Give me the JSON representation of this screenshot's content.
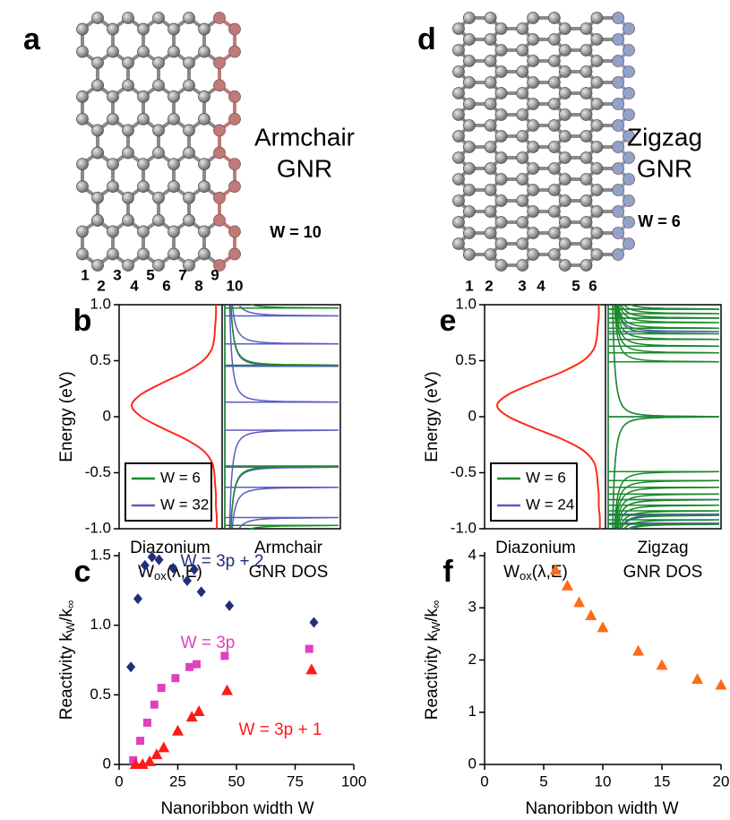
{
  "diagrams": [
    {
      "label": "a",
      "name": [
        "Armchair",
        "GNR"
      ],
      "width_label": "W = 10",
      "site_numbers": [
        "1",
        "2",
        "3",
        "4",
        "5",
        "6",
        "7",
        "8",
        "9",
        "10"
      ],
      "edge_color": "#c07a78"
    },
    {
      "label": "d",
      "name": [
        "Zigzag",
        "GNR"
      ],
      "width_label": "W = 6",
      "site_numbers": [
        "1",
        "2",
        "3",
        "4",
        "5",
        "6"
      ],
      "edge_color": "#8fa3cc"
    }
  ],
  "chart_data": [
    {
      "type": "dos",
      "label": "b",
      "ylabel": "Energy (eV)",
      "ylim": [
        -1,
        1
      ],
      "yticks": [
        {
          "value": -1,
          "label": "-1.0"
        },
        -0.5,
        0,
        0.5,
        {
          "value": 1,
          "label": "1.0"
        }
      ],
      "left_caption": "Diazonium",
      "left_formula": [
        "W",
        "ox",
        "(λ,E)"
      ],
      "right_caption": [
        "Armchair",
        "GNR DOS"
      ],
      "curve": {
        "color": "#ff2a1a",
        "y": [
          -1.0,
          -0.9,
          -0.8,
          -0.7,
          -0.6,
          -0.5,
          -0.4,
          -0.3,
          -0.2,
          -0.1,
          0,
          0.1,
          0.2,
          0.3,
          0.4,
          0.5,
          0.6,
          0.7,
          0.8,
          0.9,
          1.0
        ],
        "values": [
          0.02,
          0.02,
          0.03,
          0.03,
          0.04,
          0.05,
          0.08,
          0.18,
          0.38,
          0.65,
          0.89,
          1.0,
          0.89,
          0.65,
          0.38,
          0.18,
          0.08,
          0.05,
          0.04,
          0.03,
          0.03
        ]
      },
      "series": [
        {
          "name": "W = 6",
          "color": "#1a8a2a",
          "band_edges": [
            0.46,
            -0.44,
            0.97,
            -0.97
          ]
        },
        {
          "name": "W = 32",
          "color": "#5b5bc8",
          "band_edges": [
            0.13,
            -0.12,
            0.45,
            -0.45,
            0.65,
            -0.63,
            0.9,
            -0.9
          ]
        }
      ]
    },
    {
      "type": "dos",
      "label": "e",
      "ylabel": "Energy (eV)",
      "ylim": [
        -1,
        1
      ],
      "yticks": [
        {
          "value": -1,
          "label": "-1.0"
        },
        -0.5,
        0,
        0.5,
        {
          "value": 1,
          "label": "1.0"
        }
      ],
      "left_caption": "Diazonium",
      "left_formula": [
        "W",
        "ox",
        "(λ,E)"
      ],
      "right_caption": [
        "Zigzag",
        "GNR DOS"
      ],
      "curve": {
        "color": "#ff2a1a",
        "y": [
          -1.0,
          -0.9,
          -0.8,
          -0.7,
          -0.6,
          -0.5,
          -0.4,
          -0.3,
          -0.2,
          -0.1,
          0,
          0.1,
          0.2,
          0.3,
          0.4,
          0.5,
          0.6,
          0.7,
          0.8,
          0.9,
          1.0
        ],
        "values": [
          0.02,
          0.02,
          0.03,
          0.03,
          0.04,
          0.05,
          0.08,
          0.18,
          0.38,
          0.65,
          0.89,
          1.0,
          0.89,
          0.65,
          0.38,
          0.18,
          0.08,
          0.05,
          0.04,
          0.03,
          0.03
        ]
      },
      "series": [
        {
          "name": "W = 6",
          "color": "#1a8a2a",
          "band_edges": [
            0,
            0.49,
            0.57,
            0.63,
            0.69,
            0.74,
            0.79,
            0.84,
            0.88,
            0.92,
            0.96,
            -0.49,
            -0.57,
            -0.63,
            -0.69,
            -0.74,
            -0.79,
            -0.84,
            -0.88,
            -0.92,
            -0.96
          ]
        },
        {
          "name": "W = 24",
          "color": "#5b5bc8",
          "band_edges": [
            0,
            0.76,
            0.88,
            0.96,
            -0.74,
            -0.87,
            -0.95
          ]
        }
      ]
    },
    {
      "type": "scatter",
      "label": "c",
      "xlabel": "Nanoribbon width W",
      "ylabel": [
        "Reactivity k",
        "W",
        "/k",
        "∞"
      ],
      "xlim": [
        0,
        100
      ],
      "xticks": [
        0,
        25,
        50,
        75,
        100
      ],
      "ylim": [
        0,
        1.5
      ],
      "yticks": [
        0,
        0.5,
        {
          "value": 1,
          "label": "1.0"
        },
        1.5
      ],
      "series": [
        {
          "name": "W = 3p + 2",
          "color": "#1f2f7a",
          "marker": "diamond",
          "x": [
            5,
            8,
            11,
            14,
            17,
            23,
            29,
            32,
            35,
            47,
            83
          ],
          "values": [
            0.7,
            1.19,
            1.43,
            1.49,
            1.47,
            1.41,
            1.32,
            1.4,
            1.24,
            1.14,
            1.02
          ]
        },
        {
          "name": "W = 3p",
          "color": "#e040c0",
          "marker": "square",
          "x": [
            6,
            9,
            12,
            15,
            18,
            24,
            30,
            33,
            45,
            81
          ],
          "values": [
            0.03,
            0.17,
            0.3,
            0.43,
            0.55,
            0.62,
            0.7,
            0.72,
            0.78,
            0.83
          ]
        },
        {
          "name": "W = 3p + 1",
          "color": "#ff1a1a",
          "marker": "triangle",
          "x": [
            7,
            10,
            13,
            16,
            19,
            25,
            31,
            34,
            46,
            82
          ],
          "values": [
            0,
            0,
            0.02,
            0.07,
            0.12,
            0.24,
            0.34,
            0.38,
            0.53,
            0.68
          ]
        }
      ]
    },
    {
      "type": "scatter",
      "label": "f",
      "xlabel": "Nanoribbon width W",
      "ylabel": [
        "Reactivity k",
        "W",
        "/k",
        "∞"
      ],
      "xlim": [
        0,
        20
      ],
      "xticks": [
        0,
        5,
        10,
        15,
        20
      ],
      "ylim": [
        0,
        4
      ],
      "yticks": [
        0,
        1,
        2,
        3,
        4
      ],
      "series": [
        {
          "color": "#ff6a1a",
          "marker": "triangle",
          "x": [
            6,
            7,
            8,
            9,
            10,
            13,
            15,
            18,
            20
          ],
          "values": [
            3.72,
            3.42,
            3.1,
            2.85,
            2.62,
            2.17,
            1.9,
            1.63,
            1.52
          ]
        }
      ]
    }
  ]
}
